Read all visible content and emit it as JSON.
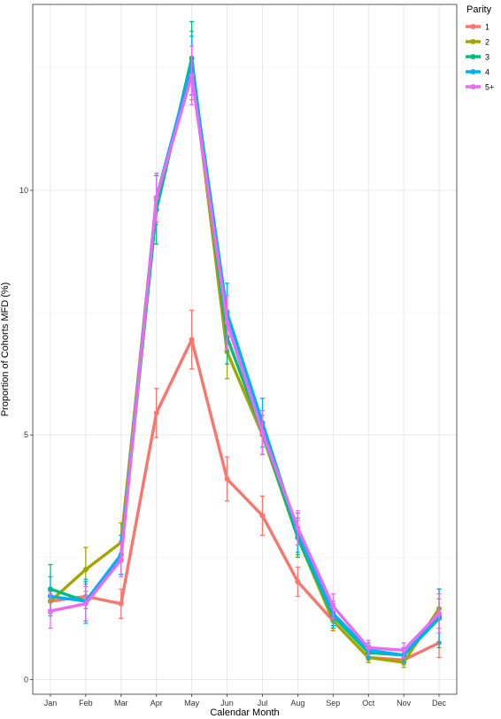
{
  "chart_data": {
    "type": "line",
    "xlabel": "Calendar Month",
    "ylabel": "Proportion of Cohorts MFD (%)",
    "categories": [
      "Jan",
      "Feb",
      "Mar",
      "Apr",
      "May",
      "Jun",
      "Jul",
      "Aug",
      "Sep",
      "Oct",
      "Nov",
      "Dec"
    ],
    "ylim": [
      -0.3,
      13.8
    ],
    "yticks": [
      0,
      5,
      10
    ],
    "grid": true,
    "legend": {
      "title": "Parity",
      "position": "right-top"
    },
    "series": [
      {
        "name": "1",
        "color": "#F8766D",
        "values": [
          1.6,
          1.7,
          1.55,
          5.45,
          6.95,
          4.1,
          3.35,
          2.0,
          1.2,
          0.45,
          0.4,
          0.75
        ],
        "errors": [
          0.25,
          0.25,
          0.3,
          0.5,
          0.6,
          0.45,
          0.4,
          0.3,
          0.2,
          0.1,
          0.1,
          0.3
        ]
      },
      {
        "name": "2",
        "color": "#A3A500",
        "values": [
          1.6,
          2.25,
          2.8,
          9.8,
          12.55,
          6.7,
          5.0,
          2.9,
          1.2,
          0.45,
          0.35,
          1.45
        ],
        "errors": [
          0.2,
          0.45,
          0.4,
          0.5,
          0.7,
          0.55,
          0.4,
          0.35,
          0.2,
          0.1,
          0.1,
          0.2
        ]
      },
      {
        "name": "3",
        "color": "#00BF7D",
        "values": [
          1.85,
          1.6,
          2.55,
          9.6,
          12.7,
          7.0,
          5.05,
          2.9,
          1.3,
          0.55,
          0.5,
          1.25
        ],
        "errors": [
          0.5,
          0.4,
          0.4,
          0.7,
          0.75,
          0.55,
          0.45,
          0.4,
          0.25,
          0.15,
          0.15,
          0.6
        ]
      },
      {
        "name": "4",
        "color": "#00B0F6",
        "values": [
          1.7,
          1.6,
          2.55,
          9.85,
          12.55,
          7.5,
          5.25,
          3.0,
          1.35,
          0.6,
          0.5,
          1.3
        ],
        "errors": [
          0.4,
          0.45,
          0.4,
          0.5,
          0.6,
          0.6,
          0.5,
          0.4,
          0.25,
          0.15,
          0.15,
          0.55
        ]
      },
      {
        "name": "5+",
        "color": "#E76BF3",
        "values": [
          1.4,
          1.55,
          2.45,
          9.85,
          12.35,
          7.3,
          5.05,
          3.1,
          1.5,
          0.65,
          0.6,
          1.35
        ],
        "errors": [
          0.35,
          0.35,
          0.35,
          0.5,
          0.6,
          0.55,
          0.45,
          0.35,
          0.25,
          0.15,
          0.15,
          0.4
        ]
      }
    ]
  }
}
